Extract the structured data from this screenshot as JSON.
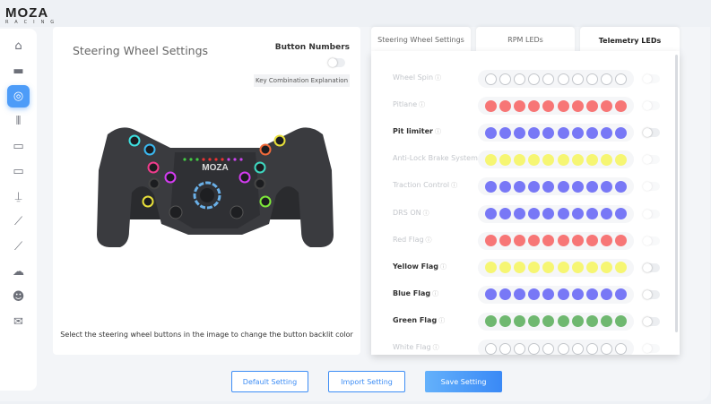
{
  "app": {
    "logo_main": "MOZA",
    "logo_sub": "RACING"
  },
  "sidebar": {
    "items": [
      {
        "icon": "home-icon"
      },
      {
        "icon": "wheelbase-icon"
      },
      {
        "icon": "steering-wheel-icon",
        "active": true
      },
      {
        "icon": "pedals-icon"
      },
      {
        "icon": "dashboard-icon"
      },
      {
        "icon": "led-bar-icon"
      },
      {
        "icon": "shifter-icon"
      },
      {
        "icon": "handbrake-icon"
      },
      {
        "icon": "handbrake-2-icon"
      },
      {
        "icon": "cloud-upload-icon"
      },
      {
        "icon": "user-icon"
      },
      {
        "icon": "chat-icon"
      }
    ]
  },
  "left": {
    "title": "Steering Wheel Settings",
    "button_numbers_label": "Button Numbers",
    "button_numbers_on": false,
    "key_combination_label": "Key Combination Explanation",
    "wheel_brand": "MOZA",
    "hint": "Select the steering wheel buttons in the image to change the button backlit color"
  },
  "tabs": [
    {
      "label": "Steering Wheel Settings"
    },
    {
      "label": "RPM LEDs"
    },
    {
      "label": "Telemetry LEDs",
      "active": true
    }
  ],
  "colors": {
    "off": "#ffffff",
    "red": "#f77676",
    "blue": "#7878f6",
    "yellow": "#f6f673",
    "green": "#6fb870",
    "accent": "#3d8df5"
  },
  "telemetry": [
    {
      "label": "Wheel Spin",
      "color": "off",
      "enabled": false
    },
    {
      "label": "Pitlane",
      "color": "red",
      "enabled": false
    },
    {
      "label": "Pit limiter",
      "color": "blue",
      "enabled": true
    },
    {
      "label": "Anti-Lock Brake System",
      "color": "yellow",
      "enabled": false
    },
    {
      "label": "Traction Control",
      "color": "blue",
      "enabled": false
    },
    {
      "label": "DRS ON",
      "color": "blue",
      "enabled": false
    },
    {
      "label": "Red Flag",
      "color": "red",
      "enabled": false
    },
    {
      "label": "Yellow Flag",
      "color": "yellow",
      "enabled": true
    },
    {
      "label": "Blue Flag",
      "color": "blue",
      "enabled": true
    },
    {
      "label": "Green Flag",
      "color": "green",
      "enabled": true
    },
    {
      "label": "White Flag",
      "color": "off",
      "enabled": false
    }
  ],
  "footer": {
    "default_label": "Default Setting",
    "import_label": "Import Setting",
    "save_label": "Save Setting"
  }
}
